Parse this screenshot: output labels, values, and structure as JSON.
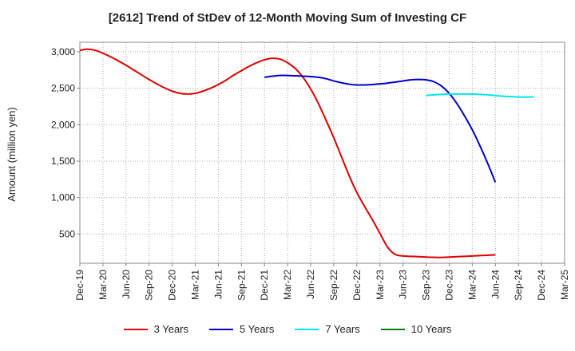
{
  "chart_data": {
    "type": "line",
    "title": "[2612]  Trend of StDev of 12-Month Moving Sum of Investing CF",
    "ylabel": "Amount (million yen)",
    "xlabel": "",
    "ylim": [
      100,
      3130
    ],
    "yticks": [
      500,
      1000,
      1500,
      2000,
      2500,
      3000
    ],
    "ytick_labels": [
      "500",
      "1,000",
      "1,500",
      "2,000",
      "2,500",
      "3,000"
    ],
    "grid": true,
    "legend_position": "bottom",
    "x_categories": [
      "Dec-19",
      "Jan-20",
      "Feb-20",
      "Mar-20",
      "Apr-20",
      "May-20",
      "Jun-20",
      "Jul-20",
      "Aug-20",
      "Sep-20",
      "Oct-20",
      "Nov-20",
      "Dec-20",
      "Jan-21",
      "Feb-21",
      "Mar-21",
      "Apr-21",
      "May-21",
      "Jun-21",
      "Jul-21",
      "Aug-21",
      "Sep-21",
      "Oct-21",
      "Nov-21",
      "Dec-21",
      "Jan-22",
      "Feb-22",
      "Mar-22",
      "Apr-22",
      "May-22",
      "Jun-22",
      "Jul-22",
      "Aug-22",
      "Sep-22",
      "Oct-22",
      "Nov-22",
      "Dec-22",
      "Jan-23",
      "Feb-23",
      "Mar-23",
      "Apr-23",
      "May-23",
      "Jun-23",
      "Jul-23",
      "Aug-23",
      "Sep-23",
      "Oct-23",
      "Nov-23",
      "Dec-23",
      "Jan-24",
      "Feb-24",
      "Mar-24",
      "Apr-24",
      "May-24",
      "Jun-24",
      "Jul-24",
      "Aug-24",
      "Sep-24",
      "Oct-24",
      "Nov-24",
      "Dec-24",
      "Jan-25",
      "Feb-25",
      "Mar-25"
    ],
    "x_tick_labels": [
      "Dec-19",
      "Mar-20",
      "Jun-20",
      "Sep-20",
      "Dec-20",
      "Mar-21",
      "Jun-21",
      "Sep-21",
      "Dec-21",
      "Mar-22",
      "Jun-22",
      "Sep-22",
      "Dec-22",
      "Mar-23",
      "Jun-23",
      "Sep-23",
      "Dec-23",
      "Mar-24",
      "Jun-24",
      "Sep-24",
      "Dec-24",
      "Mar-25"
    ],
    "series": [
      {
        "name": "3 Years",
        "color": "#dd0000",
        "start": "Dec-19",
        "values": [
          3020,
          3035,
          3020,
          2980,
          2930,
          2875,
          2815,
          2750,
          2685,
          2620,
          2560,
          2505,
          2460,
          2430,
          2420,
          2430,
          2460,
          2500,
          2550,
          2610,
          2680,
          2740,
          2800,
          2850,
          2890,
          2910,
          2900,
          2850,
          2770,
          2650,
          2490,
          2290,
          2060,
          1820,
          1560,
          1300,
          1070,
          880,
          700,
          510,
          320,
          220,
          200,
          195,
          190,
          185,
          182,
          180,
          185,
          190,
          195,
          200,
          205,
          210,
          215
        ]
      },
      {
        "name": "5 Years",
        "color": "#0000cc",
        "start": "Dec-21",
        "values": [
          2650,
          2665,
          2675,
          2675,
          2670,
          2665,
          2660,
          2650,
          2630,
          2600,
          2575,
          2555,
          2545,
          2545,
          2550,
          2560,
          2570,
          2585,
          2600,
          2615,
          2620,
          2615,
          2590,
          2530,
          2430,
          2290,
          2120,
          1930,
          1710,
          1470,
          1210
        ]
      },
      {
        "name": "7 Years",
        "color": "#00e5ee",
        "start": "Sep-23",
        "values": [
          2400,
          2410,
          2415,
          2420,
          2420,
          2420,
          2420,
          2415,
          2410,
          2400,
          2390,
          2385,
          2380,
          2380,
          2380
        ]
      },
      {
        "name": "10 Years",
        "color": "#008000",
        "start": "",
        "values": []
      }
    ]
  }
}
